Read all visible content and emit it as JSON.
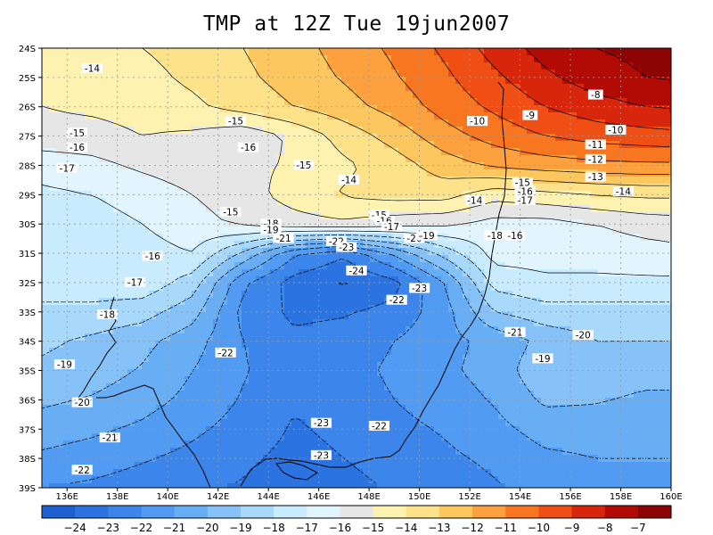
{
  "title": "TMP at 12Z Tue 19jun2007",
  "map": {
    "lat_ticks": [
      "24S",
      "25S",
      "26S",
      "27S",
      "28S",
      "29S",
      "30S",
      "31S",
      "32S",
      "33S",
      "34S",
      "35S",
      "36S",
      "37S",
      "38S",
      "39S"
    ],
    "lon_ticks": [
      "136E",
      "138E",
      "140E",
      "142E",
      "144E",
      "146E",
      "148E",
      "150E",
      "152E",
      "154E",
      "156E",
      "158E",
      "160E"
    ],
    "lat_range": [
      -39,
      -24
    ],
    "lon_range": [
      135,
      160
    ],
    "field": {
      "lats": [
        -24,
        -25,
        -26,
        -27,
        -28,
        -29,
        -30,
        -31,
        -32,
        -33,
        -34,
        -35,
        -36,
        -37,
        -38,
        -39
      ],
      "lons": [
        135,
        137,
        139,
        141,
        143,
        145,
        147,
        149,
        151,
        153,
        155,
        157,
        159,
        160
      ],
      "values": [
        [
          -14.5,
          -14.3,
          -14.0,
          -13.6,
          -13.0,
          -12.4,
          -11.6,
          -10.8,
          -9.8,
          -8.6,
          -7.6,
          -7.0,
          -6.7,
          -6.6
        ],
        [
          -14.8,
          -14.6,
          -14.3,
          -13.8,
          -13.2,
          -12.6,
          -11.9,
          -11.1,
          -10.2,
          -9.2,
          -8.2,
          -7.5,
          -7.0,
          -6.9
        ],
        [
          -15.0,
          -14.8,
          -14.6,
          -14.2,
          -13.6,
          -13.0,
          -12.4,
          -11.6,
          -10.6,
          -9.8,
          -9.0,
          -8.4,
          -8.0,
          -7.9
        ],
        [
          -15.4,
          -15.4,
          -15.0,
          -15.2,
          -15.7,
          -14.8,
          -13.6,
          -12.6,
          -11.4,
          -10.6,
          -10.0,
          -9.6,
          -9.4,
          -9.3
        ],
        [
          -16.6,
          -16.3,
          -15.8,
          -15.4,
          -15.2,
          -14.9,
          -14.2,
          -13.5,
          -12.5,
          -11.8,
          -11.5,
          -11.3,
          -11.2,
          -11.2
        ],
        [
          -17.2,
          -17.0,
          -16.6,
          -16.0,
          -15.4,
          -14.6,
          -13.9,
          -13.6,
          -13.6,
          -14.6,
          -14.3,
          -14.0,
          -13.8,
          -13.8
        ],
        [
          -17.3,
          -17.4,
          -17.0,
          -16.4,
          -15.8,
          -15.4,
          -15.2,
          -15.6,
          -15.8,
          -16.4,
          -16.4,
          -16.0,
          -15.6,
          -15.5
        ],
        [
          -17.4,
          -17.5,
          -17.4,
          -17.0,
          -19.2,
          -21.8,
          -22.8,
          -20.8,
          -18.6,
          -16.6,
          -16.6,
          -16.6,
          -16.4,
          -16.3
        ],
        [
          -17.6,
          -17.4,
          -17.3,
          -18.5,
          -21.8,
          -23.4,
          -24.1,
          -23.3,
          -21.0,
          -17.6,
          -17.2,
          -17.2,
          -17.2,
          -17.2
        ],
        [
          -18.2,
          -18.3,
          -18.6,
          -19.6,
          -22.3,
          -23.2,
          -23.1,
          -22.7,
          -21.4,
          -19.0,
          -18.4,
          -18.4,
          -18.4,
          -18.4
        ],
        [
          -18.8,
          -19.2,
          -19.7,
          -20.6,
          -22.0,
          -22.8,
          -22.6,
          -22.0,
          -21.3,
          -20.7,
          -19.7,
          -19.0,
          -19.0,
          -19.0
        ],
        [
          -19.2,
          -19.5,
          -20.1,
          -21.0,
          -21.9,
          -22.7,
          -22.4,
          -21.8,
          -21.2,
          -20.6,
          -19.2,
          -19.4,
          -19.6,
          -19.6
        ],
        [
          -19.8,
          -20.1,
          -20.6,
          -21.3,
          -22.1,
          -22.9,
          -22.6,
          -22.0,
          -21.5,
          -20.9,
          -19.8,
          -19.9,
          -20.2,
          -20.2
        ],
        [
          -20.5,
          -20.8,
          -21.2,
          -21.8,
          -22.4,
          -23.1,
          -22.8,
          -22.3,
          -21.9,
          -21.3,
          -20.6,
          -20.6,
          -20.6,
          -20.6
        ],
        [
          -21.2,
          -21.5,
          -21.9,
          -22.3,
          -22.8,
          -23.3,
          -23.0,
          -22.6,
          -22.2,
          -21.8,
          -21.2,
          -21.0,
          -21.0,
          -21.0
        ],
        [
          -22.0,
          -22.2,
          -22.5,
          -22.8,
          -23.1,
          -23.6,
          -23.3,
          -22.9,
          -22.5,
          -22.1,
          -21.6,
          -21.4,
          -21.4,
          -21.4
        ]
      ]
    },
    "contour_labels": [
      {
        "text": "-14",
        "lon": 137.0,
        "lat": -24.7
      },
      {
        "text": "-15",
        "lon": 142.7,
        "lat": -26.5
      },
      {
        "text": "-16",
        "lon": 143.2,
        "lat": -27.4
      },
      {
        "text": "-15",
        "lon": 136.4,
        "lat": -26.9
      },
      {
        "text": "-16",
        "lon": 136.4,
        "lat": -27.4
      },
      {
        "text": "-17",
        "lon": 136.0,
        "lat": -28.1
      },
      {
        "text": "-15",
        "lon": 145.4,
        "lat": -28.0
      },
      {
        "text": "-14",
        "lon": 147.2,
        "lat": -28.5
      },
      {
        "text": "-15",
        "lon": 142.5,
        "lat": -29.6
      },
      {
        "text": "-18",
        "lon": 144.1,
        "lat": -30.0
      },
      {
        "text": "-19",
        "lon": 144.1,
        "lat": -30.2
      },
      {
        "text": "-21",
        "lon": 144.6,
        "lat": -30.5
      },
      {
        "text": "-15",
        "lon": 148.4,
        "lat": -29.7
      },
      {
        "text": "-16",
        "lon": 148.6,
        "lat": -29.9
      },
      {
        "text": "-17",
        "lon": 148.9,
        "lat": -30.1
      },
      {
        "text": "-22",
        "lon": 146.7,
        "lat": -30.6
      },
      {
        "text": "-23",
        "lon": 147.1,
        "lat": -30.8
      },
      {
        "text": "-20",
        "lon": 149.8,
        "lat": -30.5
      },
      {
        "text": "-19",
        "lon": 150.3,
        "lat": -30.4
      },
      {
        "text": "-16",
        "lon": 139.4,
        "lat": -31.1
      },
      {
        "text": "-24",
        "lon": 147.5,
        "lat": -31.6
      },
      {
        "text": "-17",
        "lon": 138.7,
        "lat": -32.0
      },
      {
        "text": "-23",
        "lon": 150.0,
        "lat": -32.2
      },
      {
        "text": "-22",
        "lon": 149.1,
        "lat": -32.6
      },
      {
        "text": "-18",
        "lon": 137.6,
        "lat": -33.1
      },
      {
        "text": "-21",
        "lon": 153.8,
        "lat": -33.7
      },
      {
        "text": "-20",
        "lon": 156.5,
        "lat": -33.8
      },
      {
        "text": "-22",
        "lon": 142.3,
        "lat": -34.4
      },
      {
        "text": "-19",
        "lon": 154.9,
        "lat": -34.6
      },
      {
        "text": "-19",
        "lon": 135.9,
        "lat": -34.8
      },
      {
        "text": "-20",
        "lon": 136.6,
        "lat": -36.1
      },
      {
        "text": "-23",
        "lon": 146.1,
        "lat": -36.8
      },
      {
        "text": "-22",
        "lon": 148.4,
        "lat": -36.9
      },
      {
        "text": "-21",
        "lon": 137.7,
        "lat": -37.3
      },
      {
        "text": "-23",
        "lon": 146.1,
        "lat": -37.9
      },
      {
        "text": "-22",
        "lon": 136.6,
        "lat": -38.4
      },
      {
        "text": "-10",
        "lon": 152.3,
        "lat": -26.5
      },
      {
        "text": "-9",
        "lon": 154.4,
        "lat": -26.3
      },
      {
        "text": "-8",
        "lon": 157.0,
        "lat": -25.6
      },
      {
        "text": "-10",
        "lon": 157.8,
        "lat": -26.8
      },
      {
        "text": "-11",
        "lon": 157.0,
        "lat": -27.3
      },
      {
        "text": "-12",
        "lon": 157.0,
        "lat": -27.8
      },
      {
        "text": "-13",
        "lon": 157.0,
        "lat": -28.4
      },
      {
        "text": "-14",
        "lon": 158.1,
        "lat": -28.9
      },
      {
        "text": "-15",
        "lon": 154.1,
        "lat": -28.6
      },
      {
        "text": "-16",
        "lon": 154.2,
        "lat": -28.9
      },
      {
        "text": "-17",
        "lon": 154.2,
        "lat": -29.2
      },
      {
        "text": "-14",
        "lon": 152.2,
        "lat": -29.2
      },
      {
        "text": "-18",
        "lon": 153.0,
        "lat": -30.4
      },
      {
        "text": "-16",
        "lon": 153.8,
        "lat": -30.4
      }
    ],
    "colorbar": {
      "labels": [
        "-24",
        "-23",
        "-22",
        "-21",
        "-20",
        "-19",
        "-18",
        "-17",
        "-16",
        "-15",
        "-14",
        "-13",
        "-12",
        "-11",
        "-10",
        "-9",
        "-8",
        "-7"
      ],
      "colors": [
        "#1e5fd2",
        "#2b73e0",
        "#3c86eb",
        "#519bf2",
        "#67aef5",
        "#86c2f7",
        "#a8d8fa",
        "#c8ecfd",
        "#e2f5ff",
        "#e6e6e6",
        "#fdf2b0",
        "#fde28a",
        "#fdc75f",
        "#fca13d",
        "#f97620",
        "#ef4e15",
        "#d8260d",
        "#b20b06",
        "#8c0404"
      ]
    }
  }
}
